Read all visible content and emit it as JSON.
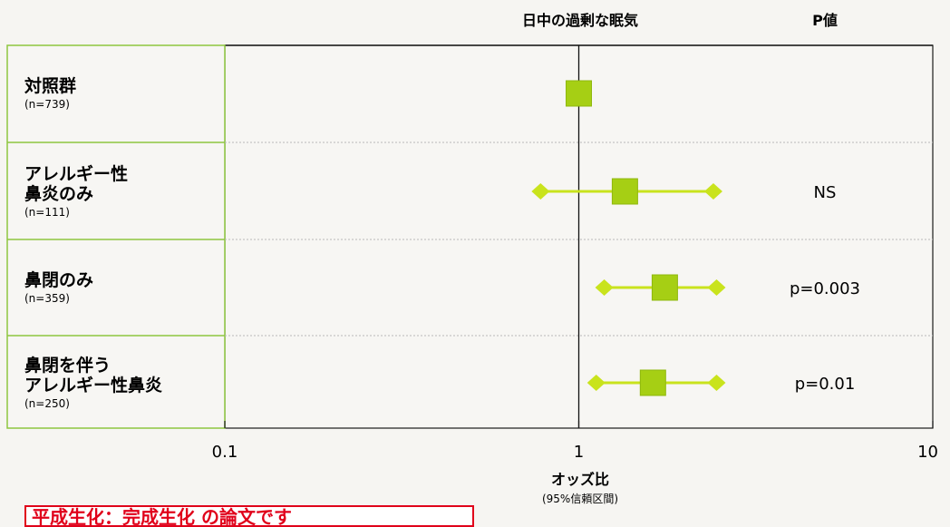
{
  "chart_data": {
    "type": "forest",
    "title": "日中の過剰な眠気",
    "pvalue_header": "P値",
    "xlabel": "オッズ比",
    "xlabel_sub": "(95%信頼区間)",
    "xscale": "log",
    "xlim": [
      0.1,
      10
    ],
    "ticks": [
      "0.1",
      "1",
      "10"
    ],
    "tick_values": [
      0.1,
      1,
      10
    ],
    "reference_line": 1,
    "rows": [
      {
        "label_lines": [
          "対照群"
        ],
        "n": "(n=739)",
        "or": 1.0,
        "ci_low": null,
        "ci_high": null,
        "p": ""
      },
      {
        "label_lines": [
          "アレルギー性",
          "鼻炎のみ"
        ],
        "n": "(n=111)",
        "or": 1.35,
        "ci_low": 0.78,
        "ci_high": 2.4,
        "p": "NS"
      },
      {
        "label_lines": [
          "鼻閉のみ"
        ],
        "n": "(n=359)",
        "or": 1.75,
        "ci_low": 1.18,
        "ci_high": 2.45,
        "p": "p=0.003"
      },
      {
        "label_lines": [
          "鼻閉を伴う",
          "アレルギー性鼻炎"
        ],
        "n": "(n=250)",
        "or": 1.62,
        "ci_low": 1.12,
        "ci_high": 2.45,
        "p": "p=0.01"
      }
    ],
    "colors": {
      "marker": "#a6cf14",
      "marker_light": "#c9e31c",
      "frame": "#8dc63f",
      "ref_line": "#111111"
    }
  },
  "bottom_note": "平成生化：完成生化 の論文です"
}
